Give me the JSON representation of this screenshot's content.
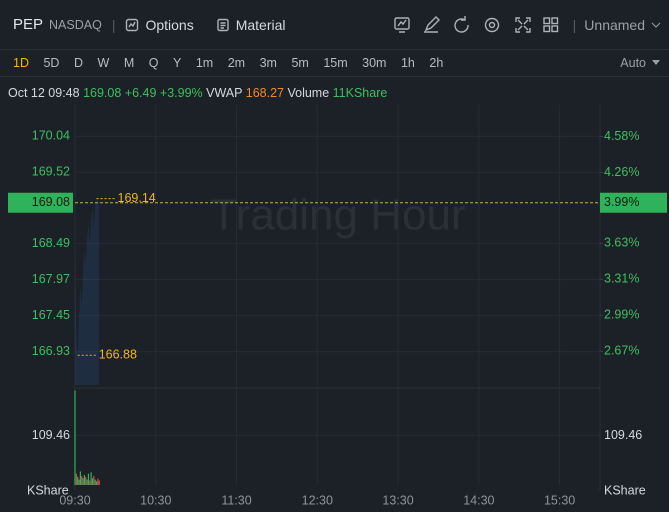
{
  "header": {
    "symbol": "PEP",
    "exchange": "NASDAQ",
    "options": "Options",
    "material": "Material",
    "layout": "Unnamed"
  },
  "timeframes": [
    "1D",
    "5D",
    "D",
    "W",
    "M",
    "Q",
    "Y",
    "1m",
    "2m",
    "3m",
    "5m",
    "15m",
    "30m",
    "1h",
    "2h"
  ],
  "active_timeframe": 0,
  "scale_mode": "Auto",
  "info": {
    "time": "Oct 12 09:48",
    "price": "169.08",
    "change": "+6.49",
    "change_pct": "+3.99%",
    "vwap_label": "VWAP",
    "vwap": "168.27",
    "volume_label": "Volume",
    "volume": "11KShare"
  },
  "chart_data": {
    "type": "line",
    "watermark": "Trading Hour",
    "x": [
      0,
      1,
      2,
      3,
      4,
      5,
      6,
      7,
      8,
      9,
      10,
      11,
      12,
      13,
      14,
      15,
      16,
      17,
      18
    ],
    "xlim": [
      0,
      390
    ],
    "xticks": [
      {
        "value": 0,
        "label": "09:30"
      },
      {
        "value": 60,
        "label": "10:30"
      },
      {
        "value": 120,
        "label": "11:30"
      },
      {
        "value": 180,
        "label": "12:30"
      },
      {
        "value": 240,
        "label": "13:30"
      },
      {
        "value": 300,
        "label": "14:30"
      },
      {
        "value": 360,
        "label": "15:30"
      }
    ],
    "ylim": [
      166.45,
      170.49
    ],
    "yticks": [
      170.04,
      169.52,
      168.49,
      167.97,
      167.45,
      166.93
    ],
    "y2lim": [
      2.37,
      4.86
    ],
    "y2ticks": [
      {
        "value": 4.58,
        "label": "4.58%"
      },
      {
        "value": 4.26,
        "label": "4.26%"
      },
      {
        "value": 3.63,
        "label": "3.63%"
      },
      {
        "value": 3.31,
        "label": "3.31%"
      },
      {
        "value": 2.99,
        "label": "2.99%"
      },
      {
        "value": 2.67,
        "label": "2.67%"
      }
    ],
    "series": [
      {
        "name": "Price",
        "color": "#2f8ff0",
        "values": [
          168.45,
          167.2,
          166.88,
          167.5,
          167.9,
          167.6,
          168.1,
          168.4,
          168.2,
          168.6,
          168.8,
          168.5,
          168.9,
          169.0,
          168.7,
          169.05,
          169.14,
          169.1,
          169.08
        ]
      },
      {
        "name": "VWAP",
        "color": "#f08a2b",
        "values": [
          168.45,
          168.3,
          168.1,
          168.0,
          167.92,
          167.9,
          167.95,
          168.0,
          168.05,
          168.08,
          168.12,
          168.15,
          168.18,
          168.2,
          168.22,
          168.24,
          168.25,
          168.26,
          168.27
        ]
      }
    ],
    "current_price": 169.08,
    "current_pct": {
      "value": 3.99,
      "label": "3.99%"
    },
    "annotations": [
      {
        "x": 16,
        "value": 169.14
      },
      {
        "x": 2,
        "value": 166.88
      }
    ],
    "volume": {
      "values": [
        209,
        25,
        18,
        12,
        30,
        20,
        15,
        22,
        18,
        12,
        25,
        10,
        28,
        15,
        20,
        12,
        8,
        14,
        10
      ],
      "colors": [
        "#2fb35a",
        "#e0464e",
        "#2fb35a",
        "#2fb35a",
        "#2fb35a",
        "#e0464e",
        "#2fb35a",
        "#2fb35a",
        "#e0464e",
        "#2fb35a",
        "#2fb35a",
        "#e0464e",
        "#2fb35a",
        "#2fb35a",
        "#e0464e",
        "#2fb35a",
        "#2fb35a",
        "#e0464e",
        "#e0464e"
      ],
      "ylim": [
        0,
        210
      ],
      "yticks": [
        109.46
      ],
      "unit": "KShare"
    }
  }
}
